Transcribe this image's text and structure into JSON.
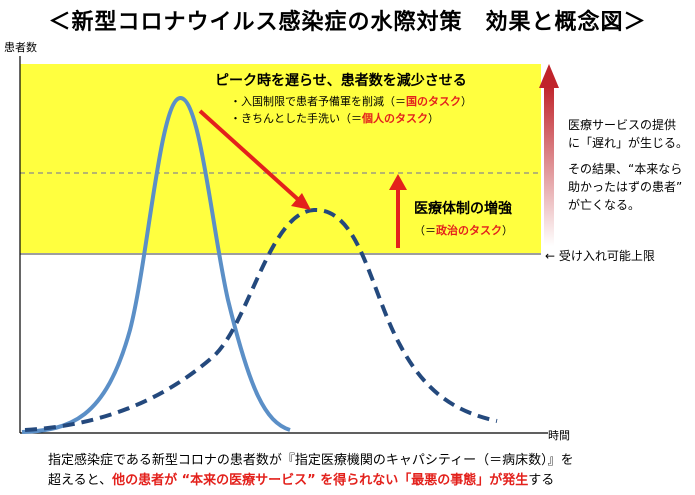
{
  "title": "＜新型コロナウイルス感染症の水際対策　効果と概念図＞",
  "axes": {
    "y_label": "患者数",
    "x_label": "時間"
  },
  "capacity_label": "←  受け入れ可能上限",
  "peak_annotation": {
    "heading": "ピーク時を遅らせ、患者数を減少させる",
    "bullet1_prefix": "・入国制限で患者予備軍を削減（＝",
    "bullet1_red": "国のタスク",
    "bullet1_suffix": "）",
    "bullet2_prefix": "・きちんとした手洗い（＝",
    "bullet2_red": "個人のタスク",
    "bullet2_suffix": "）"
  },
  "healthcare_annotation": {
    "heading": "医療体制の増強",
    "sub_prefix": "（＝",
    "sub_red": "政治のタスク",
    "sub_suffix": "）"
  },
  "side_note": {
    "line1": "医療サービスの提供",
    "line2": "に「遅れ」が生じる。",
    "line3": "その結果、“本来なら",
    "line4": "助かったはずの患者”",
    "line5": "が亡くなる。"
  },
  "footer": {
    "line1": "指定感染症である新型コロナの患者数が『指定医療機関のキャパシティー（＝病床数）』を",
    "line2_prefix": "超えると、",
    "line2_red": "他の患者が “本来の医療サービス” を得られない「最悪の事態」が発生",
    "line2_suffix": "する"
  },
  "colors": {
    "yellow_band": "#ffff3f",
    "curve": "#5b8fc7",
    "dashed_curve": "#24497d",
    "red": "#e3211c",
    "gray_line": "#9e9e9e"
  }
}
